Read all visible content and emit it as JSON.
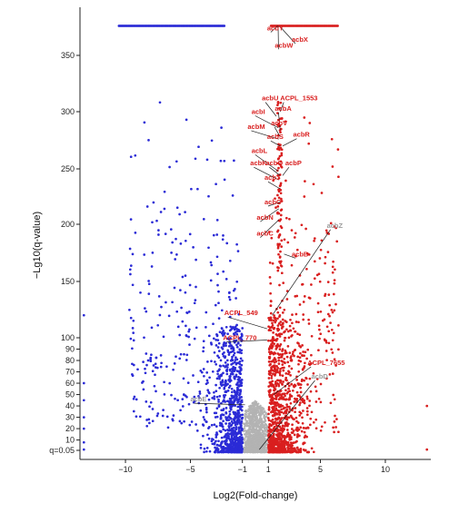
{
  "chart_data": {
    "type": "scatter",
    "title": "",
    "xlabel": "Log2(Fold-change)",
    "ylabel": "−Lg10(q-value)",
    "xlim": [
      -13.5,
      13.5
    ],
    "ylim": [
      -5,
      378
    ],
    "x_ticks": [
      {
        "value": -10,
        "label": "−10"
      },
      {
        "value": -5,
        "label": "−5"
      },
      {
        "value": -1,
        "label": "−1"
      },
      {
        "value": 1,
        "label": "1"
      },
      {
        "value": 5,
        "label": "5"
      },
      {
        "value": 10,
        "label": "10"
      }
    ],
    "y_ticks": [
      {
        "value": 1.3,
        "label": "q=0.05"
      },
      {
        "value": 10,
        "label": "10"
      },
      {
        "value": 20,
        "label": "20"
      },
      {
        "value": 30,
        "label": "30"
      },
      {
        "value": 40,
        "label": "40"
      },
      {
        "value": 50,
        "label": "50"
      },
      {
        "value": 60,
        "label": "60"
      },
      {
        "value": 70,
        "label": "70"
      },
      {
        "value": 80,
        "label": "80"
      },
      {
        "value": 90,
        "label": "90"
      },
      {
        "value": 100,
        "label": "100"
      },
      {
        "value": 150,
        "label": "150"
      },
      {
        "value": 200,
        "label": "200"
      },
      {
        "value": 250,
        "label": "250"
      },
      {
        "value": 300,
        "label": "300"
      },
      {
        "value": 350,
        "label": "350"
      }
    ],
    "thresholds": {
      "fold_change": [
        -1,
        1
      ],
      "q_value": 1.3
    },
    "colors": {
      "down": "#2b2bd6",
      "up": "#d91f1f",
      "ns": "#b3b3b3",
      "label_up": "#d91f1f",
      "label_ns": "#9a9a9a"
    },
    "grid": false,
    "legend": "none",
    "capped_rows": [
      {
        "color": "down",
        "x_from": -10.5,
        "x_to": -2.4,
        "y": 376
      },
      {
        "color": "up",
        "x_from": 1.2,
        "x_to": 6.4,
        "y": 376
      }
    ],
    "labeled_genes": [
      {
        "name": "acbY",
        "x": 1.7,
        "y": 376,
        "tx": 0.9,
        "ty": 372,
        "group": "up"
      },
      {
        "name": "acbW",
        "x": 1.75,
        "y": 376,
        "tx": 1.5,
        "ty": 357,
        "group": "up"
      },
      {
        "name": "acbX",
        "x": 1.85,
        "y": 376,
        "tx": 2.8,
        "ty": 362,
        "group": "up"
      },
      {
        "name": "acbU",
        "x": 1.6,
        "y": 296,
        "tx": 0.5,
        "ty": 310,
        "group": "up"
      },
      {
        "name": "ACPL_1553",
        "x": 1.9,
        "y": 300,
        "tx": 1.9,
        "ty": 310,
        "group": "up"
      },
      {
        "name": "acbA",
        "x": 1.9,
        "y": 284,
        "tx": 1.5,
        "ty": 301,
        "group": "up"
      },
      {
        "name": "acbI",
        "x": 1.75,
        "y": 286,
        "tx": -0.3,
        "ty": 298,
        "group": "up"
      },
      {
        "name": "acbV",
        "x": 1.9,
        "y": 278,
        "tx": 1.2,
        "ty": 288,
        "group": "up"
      },
      {
        "name": "acbM",
        "x": 1.8,
        "y": 276,
        "tx": -0.6,
        "ty": 285,
        "group": "up"
      },
      {
        "name": "acbS",
        "x": 1.9,
        "y": 270,
        "tx": 0.9,
        "ty": 276,
        "group": "up"
      },
      {
        "name": "acbR",
        "x": 2.1,
        "y": 270,
        "tx": 2.9,
        "ty": 278,
        "group": "up"
      },
      {
        "name": "acbL",
        "x": 1.75,
        "y": 248,
        "tx": -0.3,
        "ty": 264,
        "group": "up"
      },
      {
        "name": "acbQ",
        "x": 1.9,
        "y": 244,
        "tx": 0.8,
        "ty": 253,
        "group": "up"
      },
      {
        "name": "acbK",
        "x": 1.8,
        "y": 240,
        "tx": -0.4,
        "ty": 253,
        "group": "up"
      },
      {
        "name": "acbP",
        "x": 2.1,
        "y": 244,
        "tx": 2.3,
        "ty": 253,
        "group": "up"
      },
      {
        "name": "acbJ",
        "x": 1.9,
        "y": 232,
        "tx": 0.7,
        "ty": 240,
        "group": "up"
      },
      {
        "name": "acbO",
        "x": 1.9,
        "y": 220,
        "tx": 0.7,
        "ty": 218,
        "group": "up"
      },
      {
        "name": "acbN",
        "x": 1.8,
        "y": 214,
        "tx": 0.1,
        "ty": 204,
        "group": "up"
      },
      {
        "name": "acbC",
        "x": 1.8,
        "y": 204,
        "tx": 0.1,
        "ty": 190,
        "group": "up"
      },
      {
        "name": "acbZ",
        "x": 1.3,
        "y": 120,
        "tx": 5.5,
        "ty": 197,
        "group": "ns"
      },
      {
        "name": "acbB",
        "x": 2.2,
        "y": 174,
        "tx": 2.8,
        "ty": 172,
        "group": "up"
      },
      {
        "name": "ACPL_549",
        "x": 0.9,
        "y": 108,
        "tx": -2.4,
        "ty": 120,
        "group": "up"
      },
      {
        "name": "ACPL_770",
        "x": 0.9,
        "y": 98,
        "tx": -2.5,
        "ty": 98,
        "group": "up"
      },
      {
        "name": "ACPL_7655",
        "x": 1.4,
        "y": 50,
        "tx": 4.0,
        "ty": 76,
        "group": "up"
      },
      {
        "name": "acbD",
        "x": 0.3,
        "y": 2,
        "tx": 4.3,
        "ty": 64,
        "group": "ns"
      },
      {
        "name": "acbE",
        "x": -0.8,
        "y": 41,
        "tx": -5.0,
        "ty": 44,
        "group": "ns"
      }
    ]
  }
}
